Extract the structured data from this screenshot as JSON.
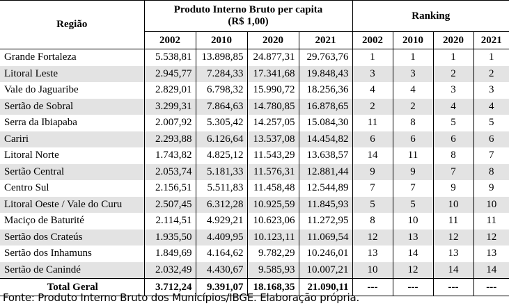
{
  "header": {
    "region_label": "Região",
    "gdp_label": "Produto Interno Bruto per capita (R$ 1,00)",
    "ranking_label": "Ranking",
    "years": [
      "2002",
      "2010",
      "2020",
      "2021"
    ]
  },
  "rows": [
    {
      "name": "Grande Fortaleza",
      "gdp": [
        "5.538,81",
        "13.898,85",
        "24.877,31",
        "29.763,76"
      ],
      "rank": [
        "1",
        "1",
        "1",
        "1"
      ]
    },
    {
      "name": "Litoral Leste",
      "gdp": [
        "2.945,77",
        "7.284,33",
        "17.341,68",
        "19.848,43"
      ],
      "rank": [
        "3",
        "3",
        "2",
        "2"
      ]
    },
    {
      "name": "Vale do Jaguaribe",
      "gdp": [
        "2.829,01",
        "6.798,32",
        "15.990,72",
        "18.256,36"
      ],
      "rank": [
        "4",
        "4",
        "3",
        "3"
      ]
    },
    {
      "name": "Sertão de Sobral",
      "gdp": [
        "3.299,31",
        "7.864,63",
        "14.780,85",
        "16.878,65"
      ],
      "rank": [
        "2",
        "2",
        "4",
        "4"
      ]
    },
    {
      "name": "Serra da Ibiapaba",
      "gdp": [
        "2.007,92",
        "5.305,42",
        "14.257,05",
        "15.084,30"
      ],
      "rank": [
        "11",
        "8",
        "5",
        "5"
      ]
    },
    {
      "name": "Cariri",
      "gdp": [
        "2.293,88",
        "6.126,64",
        "13.537,08",
        "14.454,82"
      ],
      "rank": [
        "6",
        "6",
        "6",
        "6"
      ]
    },
    {
      "name": "Litoral Norte",
      "gdp": [
        "1.743,82",
        "4.825,12",
        "11.543,29",
        "13.638,57"
      ],
      "rank": [
        "14",
        "11",
        "8",
        "7"
      ]
    },
    {
      "name": "Sertão Central",
      "gdp": [
        "2.053,74",
        "5.181,33",
        "11.576,31",
        "12.881,44"
      ],
      "rank": [
        "9",
        "9",
        "7",
        "8"
      ]
    },
    {
      "name": "Centro Sul",
      "gdp": [
        "2.156,51",
        "5.511,83",
        "11.458,48",
        "12.544,89"
      ],
      "rank": [
        "7",
        "7",
        "9",
        "9"
      ]
    },
    {
      "name": "Litoral Oeste / Vale do Curu",
      "gdp": [
        "2.507,45",
        "6.312,28",
        "10.925,59",
        "11.845,93"
      ],
      "rank": [
        "5",
        "5",
        "10",
        "10"
      ]
    },
    {
      "name": "Maciço de Baturité",
      "gdp": [
        "2.114,51",
        "4.929,21",
        "10.623,06",
        "11.272,95"
      ],
      "rank": [
        "8",
        "10",
        "11",
        "11"
      ]
    },
    {
      "name": "Sertão dos Crateús",
      "gdp": [
        "1.935,50",
        "4.409,95",
        "10.123,11",
        "11.069,54"
      ],
      "rank": [
        "12",
        "13",
        "12",
        "12"
      ]
    },
    {
      "name": "Sertão dos Inhamuns",
      "gdp": [
        "1.849,69",
        "4.164,62",
        "9.782,29",
        "10.246,01"
      ],
      "rank": [
        "13",
        "14",
        "13",
        "13"
      ]
    },
    {
      "name": "Sertão de Canindé",
      "gdp": [
        "2.032,49",
        "4.430,67",
        "9.585,93",
        "10.007,21"
      ],
      "rank": [
        "10",
        "12",
        "14",
        "14"
      ]
    }
  ],
  "total": {
    "name": "Total Geral",
    "gdp": [
      "3.712,24",
      "9.391,07",
      "18.168,35",
      "21.090,11"
    ],
    "rank": [
      "---",
      "---",
      "---",
      "---"
    ]
  },
  "source": "Fonte: Produto Interno Bruto dos Municípios/IBGE. Elaboração própria."
}
